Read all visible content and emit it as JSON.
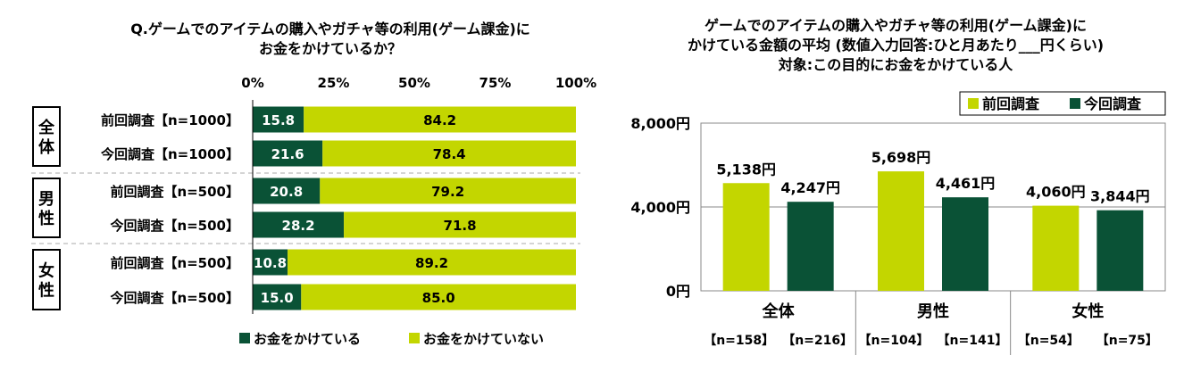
{
  "left_title": [
    "Q.ゲームでのアイテムの購入やガチャ等の利用(ゲーム課金)に",
    "お金をかけているか？"
  ],
  "right_title": [
    "ゲームでのアイテムの購入やガチャ等の利用(ゲーム課金)に",
    "かけている金額の平均 (数値入力回答:ひと月あたり___円くらい)",
    "対象:この目的にお金をかけている人"
  ],
  "colors": {
    "dark": "#0a5236",
    "light": "#c3d600"
  },
  "chart_data": [
    {
      "type": "bar",
      "orientation": "horizontal",
      "stacked": true,
      "x_ticks": [
        "0%",
        "25%",
        "50%",
        "75%",
        "100%"
      ],
      "xlim": [
        0,
        100
      ],
      "groups": [
        {
          "label": "全体",
          "rows": [
            "前回調査【n=1000】",
            "今回調査【n=1000】"
          ]
        },
        {
          "label": "男性",
          "rows": [
            "前回調査【n=500】",
            "今回調査【n=500】"
          ]
        },
        {
          "label": "女性",
          "rows": [
            "前回調査【n=500】",
            "今回調査【n=500】"
          ]
        }
      ],
      "series": [
        {
          "name": "お金をかけている",
          "values": [
            15.8,
            21.6,
            20.8,
            28.2,
            10.8,
            15.0
          ]
        },
        {
          "name": "お金をかけていない",
          "values": [
            84.2,
            78.4,
            79.2,
            71.8,
            89.2,
            85.0
          ]
        }
      ],
      "legend_position": "bottom"
    },
    {
      "type": "bar",
      "orientation": "vertical",
      "categories": [
        "全体",
        "男性",
        "女性"
      ],
      "y_ticks": [
        "0円",
        "4,000円",
        "8,000円"
      ],
      "ylim": [
        0,
        8000
      ],
      "series": [
        {
          "name": "前回調査",
          "values": [
            5138,
            5698,
            4060
          ],
          "labels": [
            "5,138円",
            "5,698円",
            "4,060円"
          ]
        },
        {
          "name": "今回調査",
          "values": [
            4247,
            4461,
            3844
          ],
          "labels": [
            "4,247円",
            "4,461円",
            "3,844円"
          ]
        }
      ],
      "n_labels": [
        "【n=158】",
        "【n=216】",
        "【n=104】",
        "【n=141】",
        "【n=54】",
        "【n=75】"
      ],
      "legend_position": "top-right"
    }
  ]
}
